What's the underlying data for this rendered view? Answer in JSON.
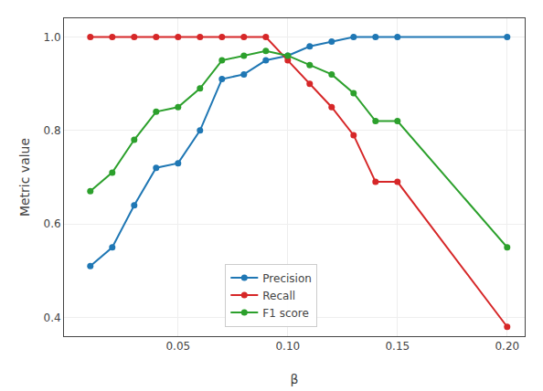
{
  "chart_data": {
    "type": "line",
    "x_label": "β",
    "y_label": "Metric value",
    "x": [
      0.01,
      0.02,
      0.03,
      0.04,
      0.05,
      0.06,
      0.07,
      0.08,
      0.09,
      0.1,
      0.11,
      0.12,
      0.13,
      0.14,
      0.15,
      0.2
    ],
    "series": [
      {
        "name": "Precision",
        "color": "#1f77b4",
        "marker": "circle",
        "values": [
          0.51,
          0.55,
          0.64,
          0.72,
          0.73,
          0.8,
          0.91,
          0.92,
          0.95,
          0.96,
          0.98,
          0.99,
          1.0,
          1.0,
          1.0,
          1.0
        ]
      },
      {
        "name": "Recall",
        "color": "#d62728",
        "marker": "circle",
        "values": [
          1.0,
          1.0,
          1.0,
          1.0,
          1.0,
          1.0,
          1.0,
          1.0,
          1.0,
          0.95,
          0.9,
          0.85,
          0.79,
          0.69,
          0.69,
          0.38
        ]
      },
      {
        "name": "F1 score",
        "color": "#2ca02c",
        "marker": "circle",
        "values": [
          0.67,
          0.71,
          0.78,
          0.84,
          0.85,
          0.89,
          0.95,
          0.96,
          0.97,
          0.96,
          0.94,
          0.92,
          0.88,
          0.82,
          0.82,
          0.55
        ]
      }
    ],
    "xlim": [
      -0.002,
      0.208
    ],
    "ylim": [
      0.36,
      1.04
    ],
    "xticks": [
      0.05,
      {
        "value": 0.1,
        "label": "0.10"
      },
      0.15,
      {
        "value": 0.2,
        "label": "0.20"
      }
    ],
    "yticks": [
      0.4,
      0.6,
      0.8,
      {
        "value": 1.0,
        "label": "1.0"
      }
    ],
    "grid": true,
    "legend": "lower center"
  }
}
